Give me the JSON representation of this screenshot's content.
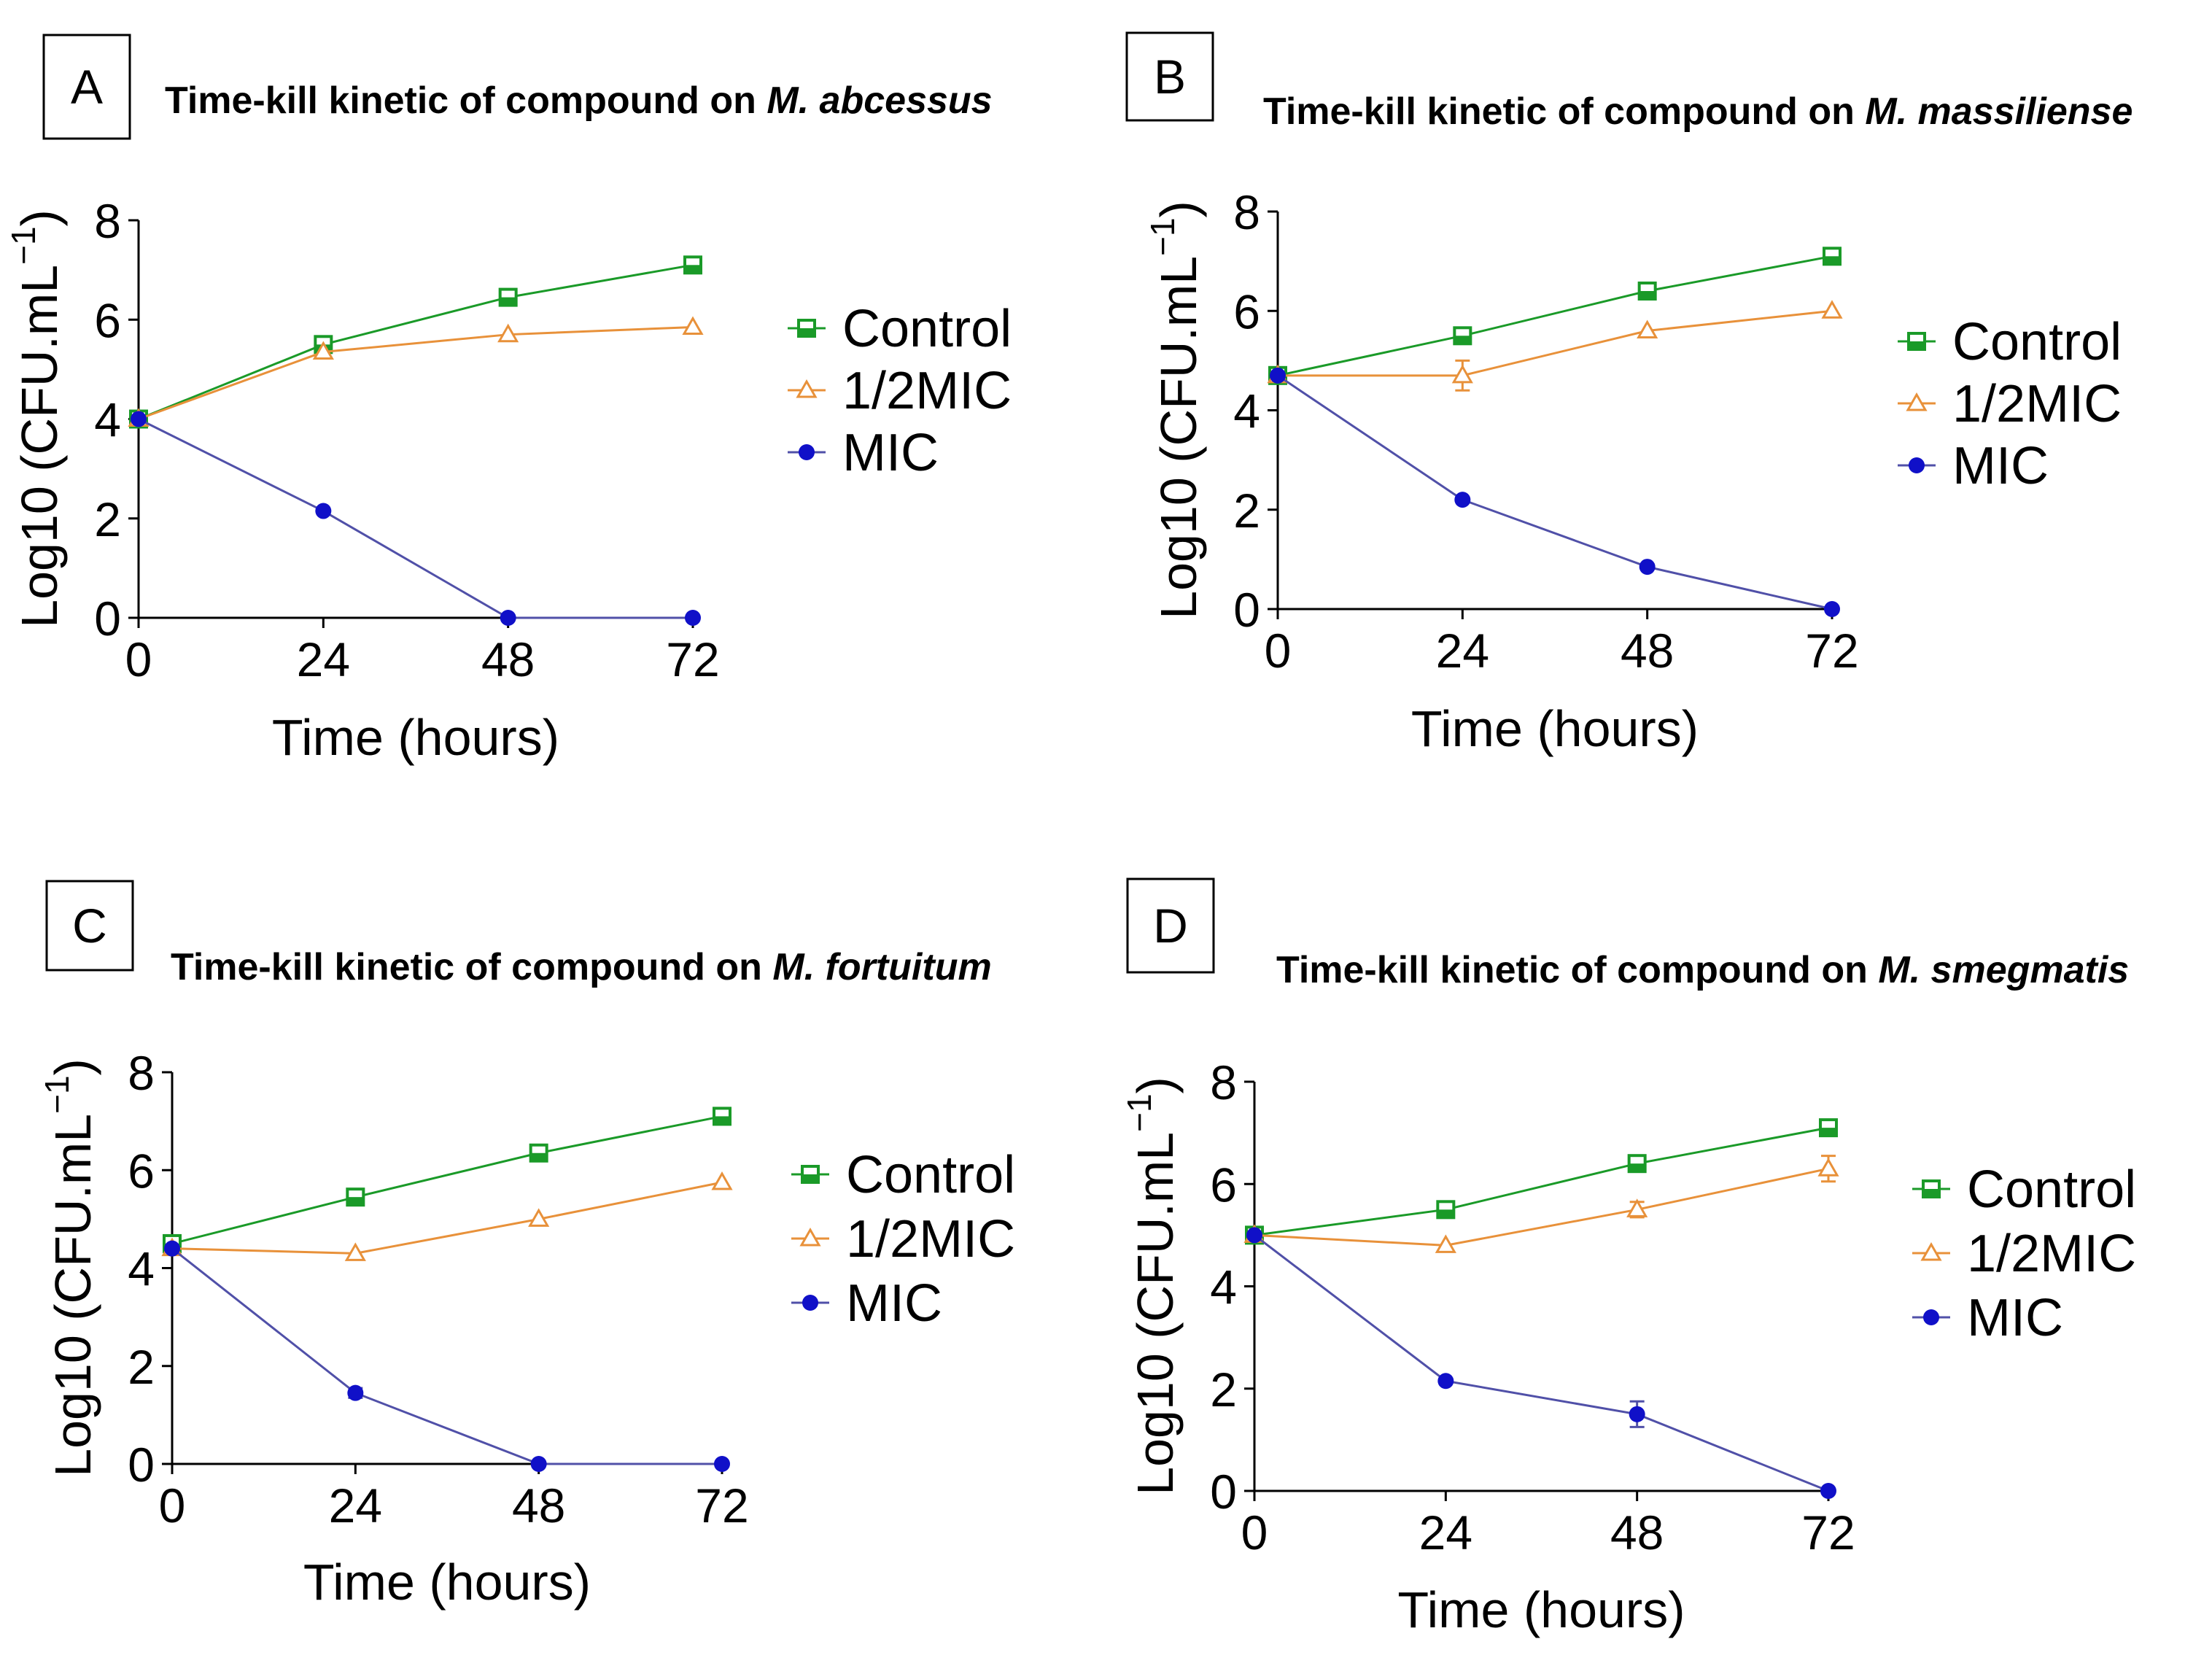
{
  "figure": {
    "colors": {
      "Control": "#1a9a28",
      "1/2MIC": "#e8913a",
      "MIC": "#1010c8",
      "MIC_line": "#5050a8",
      "axis": "#000000"
    }
  },
  "chart_data": [
    {
      "panel": "A",
      "type": "line",
      "title": "Time-kill kinetic of compound on ",
      "title_species": "M. abcessus",
      "xlabel": "Time (hours)",
      "ylabel": "Log10 (CFU.mL",
      "ylabel_sup": "−1",
      "ylabel_close": ")",
      "x": [
        0,
        24,
        48,
        72
      ],
      "xticks": [
        "0",
        "24",
        "48",
        "72"
      ],
      "yticks": [
        "0",
        "2",
        "4",
        "6",
        "8"
      ],
      "xlim": [
        0,
        72
      ],
      "ylim": [
        0,
        8
      ],
      "legend": [
        "Control",
        "1/2MIC",
        "MIC"
      ],
      "series": [
        {
          "name": "Control",
          "values": [
            4.0,
            5.5,
            6.45,
            7.1
          ],
          "errors": [
            0,
            0,
            0,
            0
          ]
        },
        {
          "name": "1/2MIC",
          "values": [
            4.0,
            5.35,
            5.7,
            5.85
          ],
          "errors": [
            0,
            0,
            0,
            0
          ]
        },
        {
          "name": "MIC",
          "values": [
            4.0,
            2.15,
            0.0,
            0.0
          ],
          "errors": [
            0,
            0,
            0,
            0
          ]
        }
      ]
    },
    {
      "panel": "B",
      "type": "line",
      "title": "Time-kill kinetic of compound on ",
      "title_species": "M. massiliense",
      "xlabel": "Time (hours)",
      "ylabel": "Log10 (CFU.mL",
      "ylabel_sup": "−1",
      "ylabel_close": ")",
      "x": [
        0,
        24,
        48,
        72
      ],
      "xticks": [
        "0",
        "24",
        "48",
        "72"
      ],
      "yticks": [
        "0",
        "2",
        "4",
        "6",
        "8"
      ],
      "xlim": [
        0,
        72
      ],
      "ylim": [
        0,
        8
      ],
      "legend": [
        "Control",
        "1/2MIC",
        "MIC"
      ],
      "series": [
        {
          "name": "Control",
          "values": [
            4.7,
            5.5,
            6.4,
            7.1
          ],
          "errors": [
            0,
            0,
            0,
            0
          ]
        },
        {
          "name": "1/2MIC",
          "values": [
            4.7,
            4.7,
            5.6,
            6.0
          ],
          "errors": [
            0,
            0.3,
            0,
            0
          ]
        },
        {
          "name": "MIC",
          "values": [
            4.7,
            2.2,
            0.85,
            0.0
          ],
          "errors": [
            0,
            0,
            0,
            0
          ]
        }
      ]
    },
    {
      "panel": "C",
      "type": "line",
      "title": "Time-kill kinetic of compound on ",
      "title_species": "M. fortuitum",
      "xlabel": "Time (hours)",
      "ylabel": "Log10 (CFU.mL",
      "ylabel_sup": "−1",
      "ylabel_close": ")",
      "x": [
        0,
        24,
        48,
        72
      ],
      "xticks": [
        "0",
        "24",
        "48",
        "72"
      ],
      "yticks": [
        "0",
        "2",
        "4",
        "6",
        "8"
      ],
      "xlim": [
        0,
        72
      ],
      "ylim": [
        0,
        8
      ],
      "legend": [
        "Control",
        "1/2MIC",
        "MIC"
      ],
      "series": [
        {
          "name": "Control",
          "values": [
            4.5,
            5.45,
            6.35,
            7.1
          ],
          "errors": [
            0,
            0,
            0,
            0
          ]
        },
        {
          "name": "1/2MIC",
          "values": [
            4.4,
            4.3,
            5.0,
            5.75
          ],
          "errors": [
            0,
            0,
            0,
            0
          ]
        },
        {
          "name": "MIC",
          "values": [
            4.4,
            1.45,
            0.0,
            0.0
          ],
          "errors": [
            0,
            0.1,
            0,
            0
          ]
        }
      ]
    },
    {
      "panel": "D",
      "type": "line",
      "title": "Time-kill kinetic of compound on ",
      "title_species": "M. smegmatis",
      "xlabel": "Time (hours)",
      "ylabel": "Log10 (CFU.mL",
      "ylabel_sup": "−1",
      "ylabel_close": ")",
      "x": [
        0,
        24,
        48,
        72
      ],
      "xticks": [
        "0",
        "24",
        "48",
        "72"
      ],
      "yticks": [
        "0",
        "2",
        "4",
        "6",
        "8"
      ],
      "xlim": [
        0,
        72
      ],
      "ylim": [
        0,
        8
      ],
      "legend": [
        "Control",
        "1/2MIC",
        "MIC"
      ],
      "series": [
        {
          "name": "Control",
          "values": [
            5.0,
            5.5,
            6.4,
            7.1
          ],
          "errors": [
            0,
            0,
            0,
            0
          ]
        },
        {
          "name": "1/2MIC",
          "values": [
            5.0,
            4.8,
            5.5,
            6.3
          ],
          "errors": [
            0,
            0,
            0.15,
            0.25
          ]
        },
        {
          "name": "MIC",
          "values": [
            5.0,
            2.15,
            1.5,
            0.0
          ],
          "errors": [
            0,
            0,
            0.25,
            0
          ]
        }
      ]
    }
  ]
}
